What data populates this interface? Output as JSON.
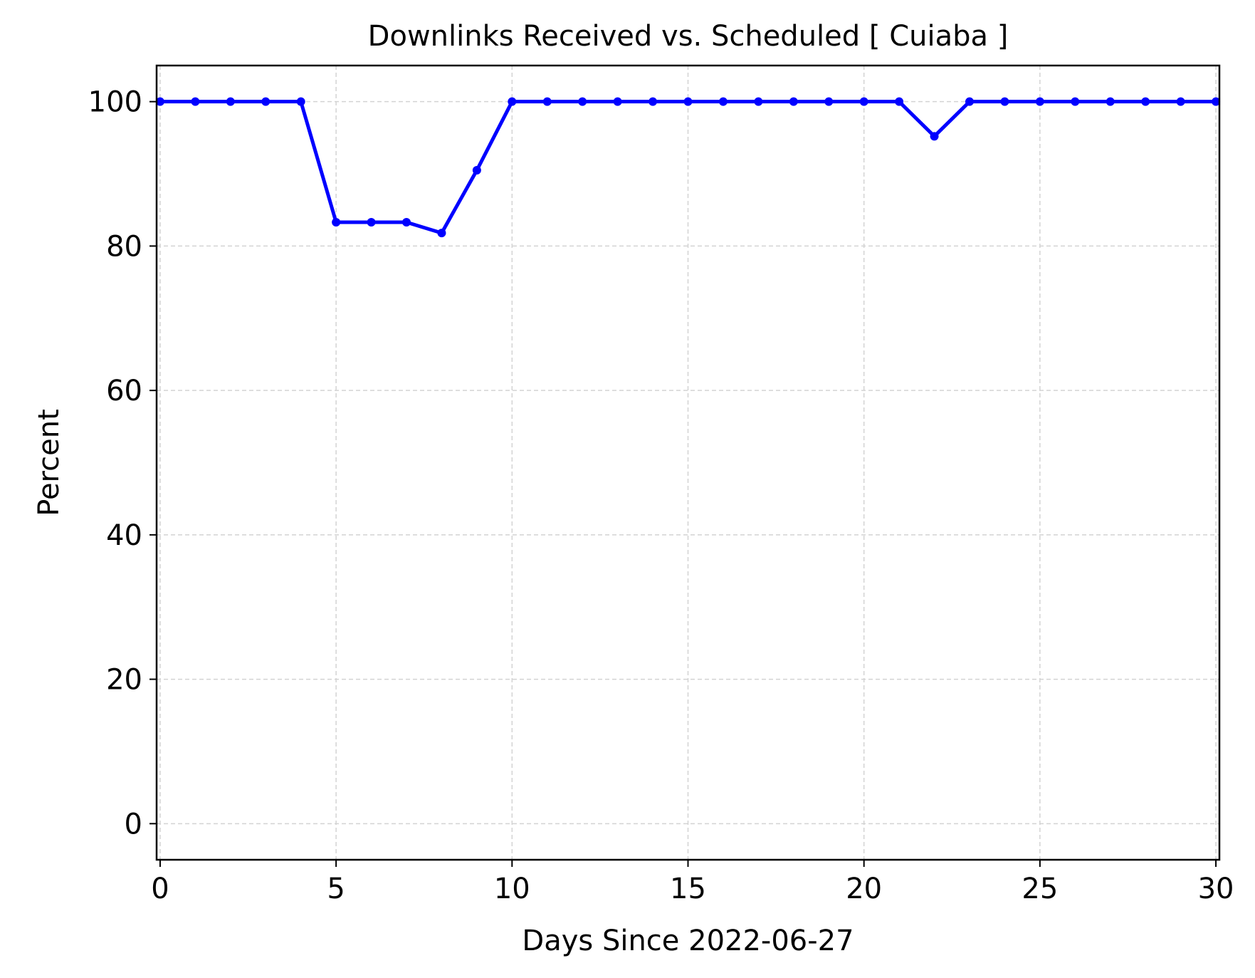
{
  "chart_data": {
    "type": "line",
    "title": "Downlinks Received vs. Scheduled [ Cuiaba ]",
    "xlabel": "Days Since 2022-06-27",
    "ylabel": "Percent",
    "xlim": [
      -0.1,
      30.1
    ],
    "ylim": [
      -5,
      105
    ],
    "xticks": [
      0,
      5,
      10,
      15,
      20,
      25,
      30
    ],
    "yticks": [
      0,
      20,
      40,
      60,
      80,
      100
    ],
    "grid": true,
    "line_color": "#0000ff",
    "series": [
      {
        "x": [
          0,
          1,
          2,
          3,
          4,
          5,
          6,
          7,
          8,
          9,
          10,
          11,
          12,
          13,
          14,
          15,
          16,
          17,
          18,
          19,
          20,
          21,
          22,
          23,
          24,
          25,
          26,
          27,
          28,
          29,
          30
        ],
        "values": [
          100,
          100,
          100,
          100,
          100,
          83.3,
          83.3,
          83.3,
          81.8,
          90.5,
          100,
          100,
          100,
          100,
          100,
          100,
          100,
          100,
          100,
          100,
          100,
          100,
          95.2,
          100,
          100,
          100,
          100,
          100,
          100,
          100,
          100
        ]
      }
    ]
  }
}
